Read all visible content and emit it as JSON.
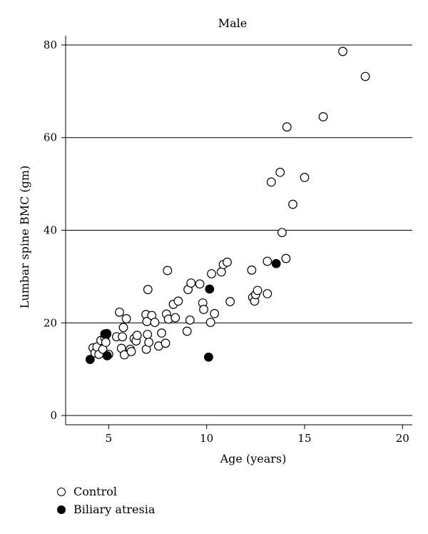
{
  "chart_data": {
    "type": "scatter",
    "title": "Male",
    "xlabel": "Age (years)",
    "ylabel": "Lumbar spine BMC (gm)",
    "xlim": [
      2.8,
      20.5
    ],
    "ylim": [
      -2,
      82
    ],
    "xticks": [
      5,
      10,
      15,
      20
    ],
    "yticks": [
      0,
      20,
      40,
      60,
      80
    ],
    "grid": "horizontal",
    "legend_position": "bottom-left",
    "series": [
      {
        "name": "Control",
        "marker": "open-circle",
        "color": "#000000",
        "points": [
          [
            4.2,
            14.6
          ],
          [
            4.3,
            13.5
          ],
          [
            4.4,
            14.8
          ],
          [
            4.5,
            13.2
          ],
          [
            4.6,
            16.2
          ],
          [
            4.7,
            14.3
          ],
          [
            4.8,
            16.8
          ],
          [
            4.85,
            15.8
          ],
          [
            4.9,
            17.6
          ],
          [
            5.0,
            13.2
          ],
          [
            5.4,
            17.0
          ],
          [
            5.55,
            22.3
          ],
          [
            5.65,
            14.5
          ],
          [
            5.7,
            17.0
          ],
          [
            5.75,
            19.0
          ],
          [
            5.8,
            13.1
          ],
          [
            5.9,
            20.9
          ],
          [
            6.1,
            14.3
          ],
          [
            6.15,
            13.8
          ],
          [
            6.3,
            16.6
          ],
          [
            6.4,
            16.1
          ],
          [
            6.45,
            17.3
          ],
          [
            6.9,
            21.8
          ],
          [
            6.92,
            14.3
          ],
          [
            6.95,
            20.3
          ],
          [
            6.98,
            17.5
          ],
          [
            7.0,
            27.2
          ],
          [
            7.05,
            15.8
          ],
          [
            7.2,
            21.6
          ],
          [
            7.35,
            20.1
          ],
          [
            7.55,
            15.0
          ],
          [
            7.7,
            17.8
          ],
          [
            7.9,
            15.6
          ],
          [
            7.95,
            21.9
          ],
          [
            8.0,
            31.3
          ],
          [
            8.05,
            20.8
          ],
          [
            8.3,
            24.0
          ],
          [
            8.4,
            21.1
          ],
          [
            8.55,
            24.7
          ],
          [
            9.0,
            18.2
          ],
          [
            9.05,
            27.2
          ],
          [
            9.15,
            20.6
          ],
          [
            9.2,
            28.6
          ],
          [
            9.65,
            28.4
          ],
          [
            9.8,
            24.3
          ],
          [
            9.85,
            22.9
          ],
          [
            10.2,
            20.1
          ],
          [
            10.25,
            30.6
          ],
          [
            10.4,
            22.0
          ],
          [
            10.75,
            31.0
          ],
          [
            10.85,
            32.6
          ],
          [
            11.05,
            33.1
          ],
          [
            11.2,
            24.6
          ],
          [
            12.3,
            31.4
          ],
          [
            12.35,
            25.5
          ],
          [
            12.45,
            24.7
          ],
          [
            12.5,
            26.1
          ],
          [
            12.6,
            27.0
          ],
          [
            13.1,
            33.3
          ],
          [
            13.1,
            26.3
          ],
          [
            13.3,
            50.4
          ],
          [
            13.75,
            52.5
          ],
          [
            13.85,
            39.5
          ],
          [
            14.05,
            33.9
          ],
          [
            14.1,
            62.3
          ],
          [
            14.4,
            45.6
          ],
          [
            15.0,
            51.4
          ],
          [
            15.95,
            64.5
          ],
          [
            16.95,
            78.6
          ],
          [
            18.1,
            73.2
          ]
        ]
      },
      {
        "name": "Biliary atresia",
        "marker": "filled-circle",
        "color": "#000000",
        "points": [
          [
            4.05,
            12.1
          ],
          [
            4.8,
            17.6
          ],
          [
            4.9,
            17.7
          ],
          [
            4.92,
            12.9
          ],
          [
            10.15,
            27.3
          ],
          [
            10.1,
            12.6
          ],
          [
            13.55,
            32.8
          ]
        ]
      }
    ]
  }
}
